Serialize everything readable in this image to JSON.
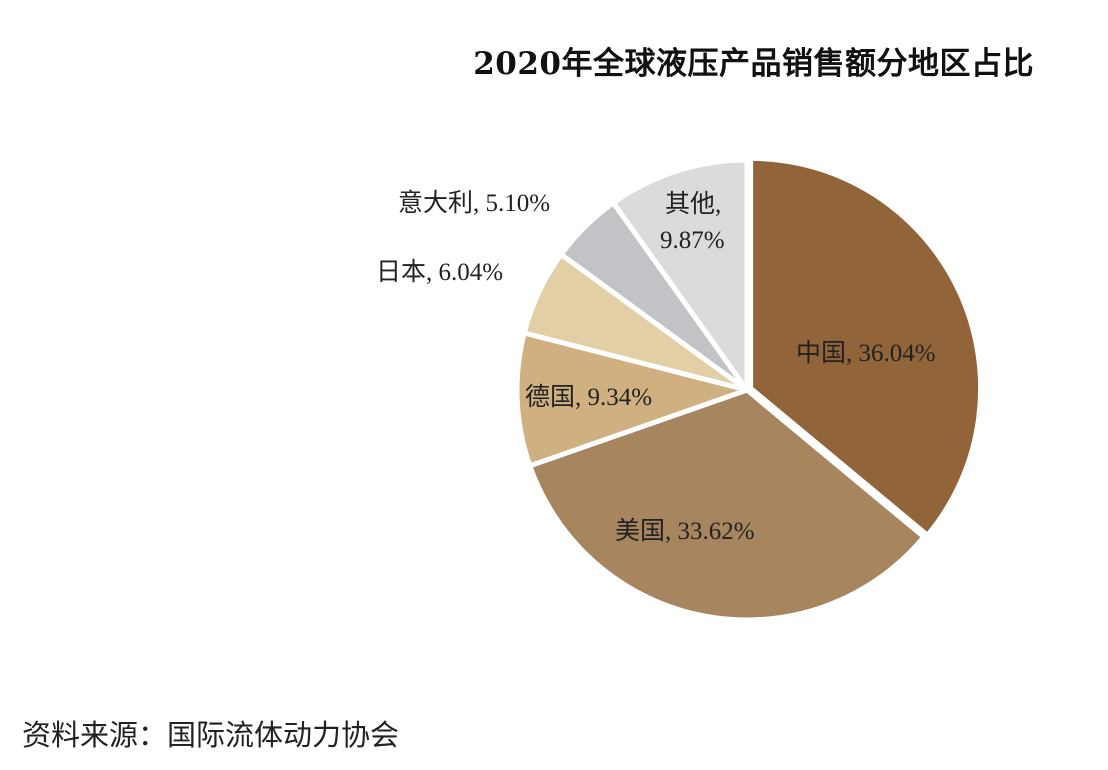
{
  "chart_data": {
    "type": "pie",
    "title": "2020年全球液压产品销售额分地区占比",
    "start_angle": "12 o'clock",
    "direction": "clockwise",
    "slices": [
      {
        "label": "中国",
        "value": 36.04,
        "text": "中国, 36.04%",
        "color": "#916539"
      },
      {
        "label": "美国",
        "value": 33.62,
        "text": "美国, 33.62%",
        "color": "#a7865f"
      },
      {
        "label": "德国",
        "value": 9.34,
        "text": "德国, 9.34%",
        "color": "#d0b080"
      },
      {
        "label": "日本",
        "value": 6.04,
        "text": "日本, 6.04%",
        "color": "#e3cfa5"
      },
      {
        "label": "意大利",
        "value": 5.1,
        "text": "意大利, 5.10%",
        "color": "#c2c3c6"
      },
      {
        "label": "其他",
        "value": 9.87,
        "text_lines": [
          "其他,",
          "9.87%"
        ],
        "color": "#dadbdd"
      }
    ],
    "legend": "none"
  },
  "source": "资料来源：国际流体动力协会"
}
